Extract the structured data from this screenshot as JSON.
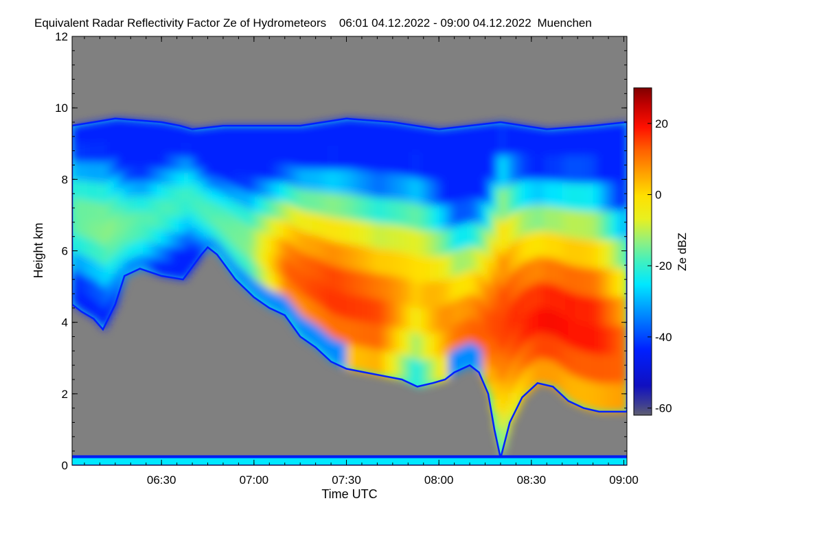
{
  "chart_data": {
    "type": "heatmap",
    "title": "Equivalent Radar Reflectivity Factor Ze of Hydrometeors",
    "period": "06:01 04.12.2022 - 09:00 04.12.2022",
    "location": "Muenchen",
    "xlabel": "Time UTC",
    "ylabel": "Height km",
    "xlim_minutes": [
      361,
      541
    ],
    "ylim_km": [
      0,
      12
    ],
    "xticks": [
      {
        "value": 390,
        "label": "06:30"
      },
      {
        "value": 420,
        "label": "07:00"
      },
      {
        "value": 450,
        "label": "07:30"
      },
      {
        "value": 480,
        "label": "08:00"
      },
      {
        "value": 510,
        "label": "08:30"
      },
      {
        "value": 540,
        "label": "09:00"
      }
    ],
    "yticks": [
      {
        "value": 0,
        "label": "0"
      },
      {
        "value": 2,
        "label": "2"
      },
      {
        "value": 4,
        "label": "4"
      },
      {
        "value": 6,
        "label": "6"
      },
      {
        "value": 8,
        "label": "8"
      },
      {
        "value": 10,
        "label": "10"
      },
      {
        "value": 12,
        "label": "12"
      }
    ],
    "colorbar": {
      "label": "Ze dBZ",
      "range": [
        -62,
        30
      ],
      "ticks": [
        {
          "value": 20,
          "label": "20"
        },
        {
          "value": 0,
          "label": "0"
        },
        {
          "value": -20,
          "label": "-20"
        },
        {
          "value": -40,
          "label": "-40"
        },
        {
          "value": -60,
          "label": "-60"
        }
      ]
    },
    "no_signal_color": "#808080",
    "cloud_top_km": [
      [
        361,
        9.5
      ],
      [
        375,
        9.7
      ],
      [
        390,
        9.6
      ],
      [
        396,
        9.5
      ],
      [
        400,
        9.4
      ],
      [
        410,
        9.5
      ],
      [
        420,
        9.5
      ],
      [
        435,
        9.5
      ],
      [
        450,
        9.7
      ],
      [
        465,
        9.6
      ],
      [
        480,
        9.4
      ],
      [
        500,
        9.6
      ],
      [
        515,
        9.4
      ],
      [
        530,
        9.5
      ],
      [
        541,
        9.6
      ]
    ],
    "cloud_base_km": [
      [
        361,
        4.5
      ],
      [
        364,
        4.3
      ],
      [
        368,
        4.1
      ],
      [
        371,
        3.8
      ],
      [
        375,
        4.5
      ],
      [
        378,
        5.3
      ],
      [
        383,
        5.5
      ],
      [
        390,
        5.3
      ],
      [
        397,
        5.2
      ],
      [
        403,
        5.9
      ],
      [
        405,
        6.1
      ],
      [
        408,
        5.9
      ],
      [
        414,
        5.2
      ],
      [
        420,
        4.7
      ],
      [
        425,
        4.4
      ],
      [
        430,
        4.2
      ],
      [
        435,
        3.6
      ],
      [
        440,
        3.3
      ],
      [
        445,
        2.9
      ],
      [
        450,
        2.7
      ],
      [
        456,
        2.6
      ],
      [
        462,
        2.5
      ],
      [
        468,
        2.4
      ],
      [
        473,
        2.2
      ],
      [
        478,
        2.3
      ],
      [
        482,
        2.4
      ],
      [
        485,
        2.6
      ],
      [
        490,
        2.8
      ],
      [
        493,
        2.6
      ],
      [
        496,
        2.0
      ],
      [
        498,
        1.0
      ],
      [
        500,
        0.2
      ],
      [
        503,
        1.2
      ],
      [
        507,
        1.9
      ],
      [
        512,
        2.3
      ],
      [
        517,
        2.2
      ],
      [
        522,
        1.8
      ],
      [
        527,
        1.6
      ],
      [
        532,
        1.5
      ],
      [
        537,
        1.5
      ],
      [
        541,
        1.5
      ]
    ],
    "reflectivity_core_dbz": [
      {
        "time": 362,
        "height": 7.0,
        "ze": -12
      },
      {
        "time": 372,
        "height": 6.6,
        "ze": -10
      },
      {
        "time": 384,
        "height": 6.8,
        "ze": -14
      },
      {
        "time": 398,
        "height": 7.5,
        "ze": -16
      },
      {
        "time": 418,
        "height": 6.2,
        "ze": -10
      },
      {
        "time": 430,
        "height": 5.5,
        "ze": 14
      },
      {
        "time": 445,
        "height": 4.8,
        "ze": 18
      },
      {
        "time": 460,
        "height": 4.2,
        "ze": 16
      },
      {
        "time": 472,
        "height": 5.0,
        "ze": 4
      },
      {
        "time": 485,
        "height": 3.6,
        "ze": 12
      },
      {
        "time": 500,
        "height": 4.0,
        "ze": 17
      },
      {
        "time": 515,
        "height": 4.2,
        "ze": 21
      },
      {
        "time": 530,
        "height": 3.8,
        "ze": 20
      },
      {
        "time": 540,
        "height": 3.0,
        "ze": 14
      }
    ],
    "ground_clutter_km": 0.2
  }
}
